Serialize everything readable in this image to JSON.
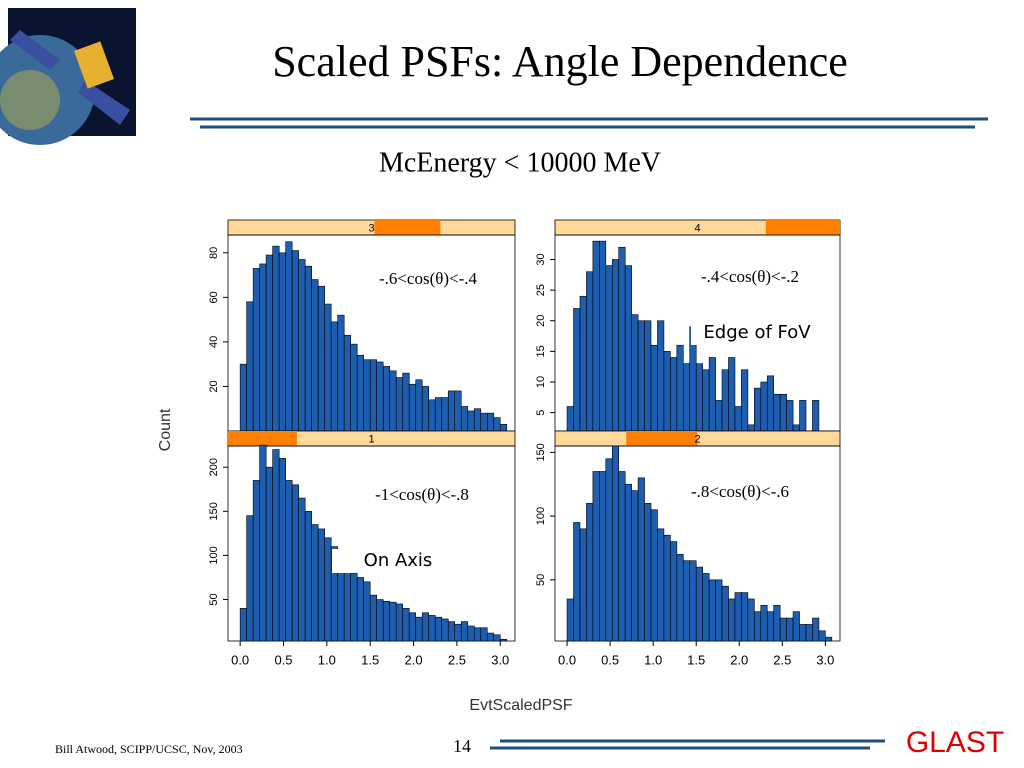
{
  "title": "Scaled PSFs: Angle Dependence",
  "subtitle": "McEnergy < 10000 MeV",
  "ylabel": "Count",
  "xlabel": "EvtScaledPSF",
  "footer": "Bill Atwood,  SCIPP/UCSC, Nov, 2003",
  "page_number": "14",
  "logo": "GLAST",
  "chart_data": [
    {
      "type": "histogram",
      "strip": "3",
      "color": "#1d5eb0",
      "annotations": [
        "-.6<cos(θ)<-.4"
      ],
      "bins": [
        0,
        0.075,
        0.15,
        0.225,
        0.3,
        0.375,
        0.45,
        0.525,
        0.6,
        0.675,
        0.75,
        0.825,
        0.9,
        0.975,
        1.05,
        1.125,
        1.2,
        1.275,
        1.35,
        1.425,
        1.5,
        1.575,
        1.65,
        1.725,
        1.8,
        1.875,
        1.95,
        2.025,
        2.1,
        2.175,
        2.25,
        2.325,
        2.4,
        2.475,
        2.55,
        2.625,
        2.7,
        2.775,
        2.85,
        2.925,
        3.0,
        3.075
      ],
      "values": [
        30,
        58,
        73,
        75,
        79,
        83,
        80,
        85,
        81,
        77,
        74,
        68,
        65,
        57,
        49,
        52,
        43,
        39,
        34,
        32,
        32,
        31,
        29,
        27,
        24,
        26,
        21,
        23,
        20,
        14,
        15,
        15,
        18,
        18,
        11,
        9,
        10,
        8,
        8,
        6,
        3
      ],
      "xlim": [
        -0.14,
        3.17
      ],
      "ylim": [
        0,
        88
      ],
      "yticks": [
        20,
        40,
        60,
        80
      ]
    },
    {
      "type": "histogram",
      "strip": "4",
      "color": "#1d5eb0",
      "annotations": [
        "-.4<cos(θ)<-.2",
        "Edge of FoV"
      ],
      "bins": [
        0,
        0.075,
        0.15,
        0.225,
        0.3,
        0.375,
        0.45,
        0.525,
        0.6,
        0.675,
        0.75,
        0.825,
        0.9,
        0.975,
        1.05,
        1.125,
        1.2,
        1.275,
        1.35,
        1.425,
        1.5,
        1.575,
        1.65,
        1.725,
        1.8,
        1.875,
        1.95,
        2.025,
        2.1,
        2.175,
        2.25,
        2.325,
        2.4,
        2.475,
        2.55,
        2.625,
        2.7,
        2.775,
        2.85,
        2.925,
        3.0,
        3.075
      ],
      "values": [
        6,
        22,
        24,
        28,
        33,
        33,
        29,
        30,
        32,
        29,
        21,
        20,
        20,
        16,
        20,
        15,
        14,
        16,
        13,
        19,
        13,
        12,
        14,
        7,
        12,
        14,
        6,
        12,
        3,
        9,
        10,
        11,
        8,
        8,
        7,
        3,
        7,
        2,
        7,
        1,
        1
      ],
      "xlim": [
        -0.14,
        3.17
      ],
      "ylim": [
        2,
        34
      ],
      "yticks": [
        5,
        10,
        15,
        20,
        25,
        30
      ]
    },
    {
      "type": "histogram",
      "strip": "1",
      "color": "#1d5eb0",
      "annotations": [
        "-1<cos(θ)<-.8",
        "On Axis"
      ],
      "bins": [
        0,
        0.075,
        0.15,
        0.225,
        0.3,
        0.375,
        0.45,
        0.525,
        0.6,
        0.675,
        0.75,
        0.825,
        0.9,
        0.975,
        1.05,
        1.125,
        1.2,
        1.275,
        1.35,
        1.425,
        1.5,
        1.575,
        1.65,
        1.725,
        1.8,
        1.875,
        1.95,
        2.025,
        2.1,
        2.175,
        2.25,
        2.325,
        2.4,
        2.475,
        2.55,
        2.625,
        2.7,
        2.775,
        2.85,
        2.925,
        3.0,
        3.075
      ],
      "values": [
        40,
        145,
        185,
        225,
        200,
        220,
        210,
        185,
        180,
        165,
        150,
        135,
        130,
        120,
        110,
        100,
        90,
        80,
        75,
        70,
        55,
        50,
        48,
        47,
        45,
        40,
        35,
        30,
        35,
        32,
        30,
        28,
        25,
        22,
        25,
        20,
        18,
        18,
        12,
        10,
        5
      ],
      "xlim": [
        -0.14,
        3.17
      ],
      "ylim": [
        3,
        224
      ],
      "yticks": [
        50,
        100,
        150,
        200
      ],
      "xticks": [
        {
          "value": 0,
          "label": "0.0"
        },
        0.5,
        {
          "value": 1,
          "label": "1.0"
        },
        1.5,
        {
          "value": 2,
          "label": "2.0"
        },
        2.5,
        {
          "value": 3,
          "label": "3.0"
        }
      ]
    },
    {
      "type": "histogram",
      "strip": "2",
      "color": "#1d5eb0",
      "annotations": [
        "-.8<cos(θ)<-.6"
      ],
      "bins": [
        0,
        0.075,
        0.15,
        0.225,
        0.3,
        0.375,
        0.45,
        0.525,
        0.6,
        0.675,
        0.75,
        0.825,
        0.9,
        0.975,
        1.05,
        1.125,
        1.2,
        1.275,
        1.35,
        1.425,
        1.5,
        1.575,
        1.65,
        1.725,
        1.8,
        1.875,
        1.95,
        2.025,
        2.1,
        2.175,
        2.25,
        2.325,
        2.4,
        2.475,
        2.55,
        2.625,
        2.7,
        2.775,
        2.85,
        2.925,
        3.0,
        3.075
      ],
      "values": [
        35,
        95,
        90,
        110,
        135,
        135,
        145,
        155,
        135,
        125,
        120,
        130,
        110,
        105,
        90,
        85,
        80,
        70,
        65,
        65,
        60,
        55,
        50,
        50,
        45,
        35,
        40,
        40,
        35,
        25,
        30,
        25,
        30,
        20,
        20,
        25,
        15,
        15,
        20,
        10,
        5
      ],
      "xlim": [
        -0.14,
        3.17
      ],
      "ylim": [
        2,
        155
      ],
      "yticks": [
        50,
        100,
        150
      ],
      "xticks": [
        {
          "value": 0,
          "label": "0.0"
        },
        0.5,
        {
          "value": 1,
          "label": "1.0"
        },
        1.5,
        {
          "value": 2,
          "label": "2.0"
        },
        2.5,
        {
          "value": 3,
          "label": "3.0"
        }
      ]
    }
  ]
}
